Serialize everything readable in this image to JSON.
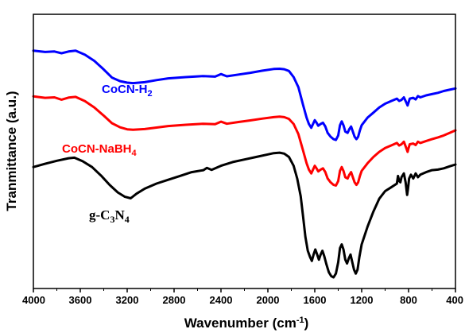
{
  "chart_data": {
    "type": "line",
    "xlabel_main": "Wavenumber (cm",
    "xlabel_sup": "-1",
    "xlabel_end": ")",
    "ylabel": "Tranmittance (a.u.)",
    "xlim": [
      4000,
      400
    ],
    "x_reversed": true,
    "ylim": [
      0,
      100
    ],
    "y_ticks_visible": false,
    "grid": false,
    "xticks": [
      4000,
      3600,
      3200,
      2800,
      2400,
      2000,
      1600,
      1200,
      800,
      400
    ],
    "xtick_labels": [
      "4000",
      "3600",
      "3200",
      "2800",
      "2400",
      "2000",
      "1600",
      "1200",
      "800",
      "400"
    ],
    "series": [
      {
        "name": "CoCN-H2",
        "label_main": "CoCN-H",
        "label_sub": "2",
        "color": "#0000ff",
        "points": [
          [
            4000,
            89.4
          ],
          [
            3900,
            88.9
          ],
          [
            3820,
            89.1
          ],
          [
            3760,
            88.4
          ],
          [
            3700,
            89.1
          ],
          [
            3640,
            89.4
          ],
          [
            3560,
            87.8
          ],
          [
            3480,
            85.4
          ],
          [
            3400,
            82.0
          ],
          [
            3330,
            78.8
          ],
          [
            3260,
            77.4
          ],
          [
            3200,
            76.8
          ],
          [
            3150,
            76.6
          ],
          [
            3050,
            77.0
          ],
          [
            2950,
            77.8
          ],
          [
            2850,
            78.5
          ],
          [
            2700,
            79.0
          ],
          [
            2550,
            79.4
          ],
          [
            2450,
            79.2
          ],
          [
            2400,
            80.2
          ],
          [
            2350,
            79.3
          ],
          [
            2250,
            80.0
          ],
          [
            2150,
            80.7
          ],
          [
            2050,
            81.5
          ],
          [
            1950,
            82.2
          ],
          [
            1900,
            82.3
          ],
          [
            1860,
            82.1
          ],
          [
            1820,
            81.4
          ],
          [
            1780,
            79.0
          ],
          [
            1740,
            75.0
          ],
          [
            1700,
            68.0
          ],
          [
            1670,
            63.0
          ],
          [
            1650,
            60.5
          ],
          [
            1630,
            59.0
          ],
          [
            1615,
            60.5
          ],
          [
            1600,
            62.0
          ],
          [
            1585,
            61.0
          ],
          [
            1570,
            59.8
          ],
          [
            1550,
            60.5
          ],
          [
            1530,
            61.0
          ],
          [
            1510,
            59.5
          ],
          [
            1490,
            57.0
          ],
          [
            1465,
            55.5
          ],
          [
            1440,
            54.5
          ],
          [
            1420,
            54.2
          ],
          [
            1400,
            56.0
          ],
          [
            1385,
            60.0
          ],
          [
            1370,
            61.5
          ],
          [
            1355,
            60.0
          ],
          [
            1340,
            57.5
          ],
          [
            1320,
            57.0
          ],
          [
            1305,
            58.5
          ],
          [
            1290,
            59.5
          ],
          [
            1275,
            57.5
          ],
          [
            1260,
            55.5
          ],
          [
            1245,
            54.5
          ],
          [
            1230,
            55.5
          ],
          [
            1215,
            58.0
          ],
          [
            1200,
            60.0
          ],
          [
            1150,
            63.0
          ],
          [
            1100,
            65.0
          ],
          [
            1050,
            67.0
          ],
          [
            1000,
            68.5
          ],
          [
            950,
            69.5
          ],
          [
            900,
            70.5
          ],
          [
            880,
            69.6
          ],
          [
            860,
            70.0
          ],
          [
            840,
            71.0
          ],
          [
            820,
            69.0
          ],
          [
            808,
            67.8
          ],
          [
            800,
            69.0
          ],
          [
            790,
            70.5
          ],
          [
            760,
            70.8
          ],
          [
            740,
            70.2
          ],
          [
            720,
            71.5
          ],
          [
            700,
            71.0
          ],
          [
            650,
            71.8
          ],
          [
            600,
            72.3
          ],
          [
            550,
            72.8
          ],
          [
            500,
            73.5
          ],
          [
            450,
            74.0
          ],
          [
            400,
            74.5
          ]
        ]
      },
      {
        "name": "CoCN-NaBH4",
        "label_main": "CoCN-NaBH",
        "label_sub": "4",
        "color": "#ff0000",
        "points": [
          [
            4000,
            71.4
          ],
          [
            3900,
            70.8
          ],
          [
            3820,
            71.0
          ],
          [
            3760,
            70.1
          ],
          [
            3700,
            70.9
          ],
          [
            3640,
            71.2
          ],
          [
            3560,
            69.5
          ],
          [
            3480,
            67.0
          ],
          [
            3400,
            63.8
          ],
          [
            3330,
            60.8
          ],
          [
            3260,
            59.2
          ],
          [
            3200,
            58.4
          ],
          [
            3150,
            58.2
          ],
          [
            3050,
            58.5
          ],
          [
            2950,
            59.1
          ],
          [
            2850,
            59.7
          ],
          [
            2700,
            60.2
          ],
          [
            2550,
            60.6
          ],
          [
            2450,
            60.4
          ],
          [
            2400,
            61.4
          ],
          [
            2350,
            60.6
          ],
          [
            2250,
            61.3
          ],
          [
            2150,
            61.9
          ],
          [
            2050,
            62.6
          ],
          [
            1950,
            63.2
          ],
          [
            1900,
            63.4
          ],
          [
            1860,
            63.2
          ],
          [
            1820,
            62.5
          ],
          [
            1780,
            60.5
          ],
          [
            1740,
            56.5
          ],
          [
            1700,
            50.0
          ],
          [
            1670,
            45.0
          ],
          [
            1650,
            42.5
          ],
          [
            1630,
            41.0
          ],
          [
            1615,
            42.5
          ],
          [
            1600,
            44.0
          ],
          [
            1585,
            43.0
          ],
          [
            1570,
            41.8
          ],
          [
            1550,
            42.5
          ],
          [
            1530,
            43.0
          ],
          [
            1510,
            41.5
          ],
          [
            1490,
            39.0
          ],
          [
            1465,
            37.5
          ],
          [
            1440,
            36.5
          ],
          [
            1420,
            36.2
          ],
          [
            1400,
            38.0
          ],
          [
            1385,
            42.0
          ],
          [
            1370,
            43.5
          ],
          [
            1355,
            42.0
          ],
          [
            1340,
            39.5
          ],
          [
            1320,
            39.0
          ],
          [
            1305,
            40.5
          ],
          [
            1290,
            41.5
          ],
          [
            1275,
            39.5
          ],
          [
            1260,
            37.5
          ],
          [
            1245,
            36.5
          ],
          [
            1230,
            37.5
          ],
          [
            1215,
            40.0
          ],
          [
            1200,
            42.0
          ],
          [
            1150,
            45.0
          ],
          [
            1100,
            47.5
          ],
          [
            1050,
            49.5
          ],
          [
            1000,
            51.0
          ],
          [
            950,
            52.0
          ],
          [
            900,
            53.0
          ],
          [
            880,
            52.0
          ],
          [
            860,
            52.5
          ],
          [
            840,
            53.5
          ],
          [
            820,
            51.0
          ],
          [
            808,
            49.5
          ],
          [
            800,
            51.0
          ],
          [
            790,
            52.5
          ],
          [
            760,
            52.8
          ],
          [
            740,
            52.2
          ],
          [
            720,
            53.5
          ],
          [
            700,
            53.0
          ],
          [
            650,
            53.8
          ],
          [
            600,
            54.5
          ],
          [
            550,
            55.2
          ],
          [
            500,
            56.0
          ],
          [
            450,
            57.0
          ],
          [
            400,
            58.0
          ]
        ]
      },
      {
        "name": "g-C3N4",
        "label_main": "g-C",
        "label_sub1": "3",
        "label_mid": "N",
        "label_sub2": "4",
        "color": "#000000",
        "points": [
          [
            4000,
            43.5
          ],
          [
            3900,
            44.8
          ],
          [
            3800,
            46.0
          ],
          [
            3700,
            47.0
          ],
          [
            3650,
            47.2
          ],
          [
            3580,
            45.8
          ],
          [
            3500,
            43.5
          ],
          [
            3420,
            40.0
          ],
          [
            3350,
            36.5
          ],
          [
            3280,
            33.5
          ],
          [
            3220,
            31.8
          ],
          [
            3170,
            31.2
          ],
          [
            3120,
            33.0
          ],
          [
            3050,
            35.0
          ],
          [
            2950,
            37.0
          ],
          [
            2850,
            38.5
          ],
          [
            2750,
            40.0
          ],
          [
            2650,
            41.5
          ],
          [
            2550,
            42.3
          ],
          [
            2520,
            43.2
          ],
          [
            2480,
            42.4
          ],
          [
            2400,
            44.0
          ],
          [
            2300,
            45.5
          ],
          [
            2200,
            46.5
          ],
          [
            2100,
            47.5
          ],
          [
            2000,
            48.5
          ],
          [
            1950,
            49.0
          ],
          [
            1900,
            49.2
          ],
          [
            1860,
            48.8
          ],
          [
            1820,
            47.5
          ],
          [
            1780,
            44.0
          ],
          [
            1750,
            39.0
          ],
          [
            1720,
            32.0
          ],
          [
            1700,
            24.0
          ],
          [
            1680,
            16.0
          ],
          [
            1660,
            10.5
          ],
          [
            1640,
            8.0
          ],
          [
            1625,
            6.5
          ],
          [
            1610,
            9.0
          ],
          [
            1595,
            11.0
          ],
          [
            1580,
            9.0
          ],
          [
            1565,
            7.0
          ],
          [
            1550,
            9.0
          ],
          [
            1535,
            10.5
          ],
          [
            1520,
            8.5
          ],
          [
            1500,
            5.0
          ],
          [
            1480,
            2.0
          ],
          [
            1460,
            0.5
          ],
          [
            1440,
            0.0
          ],
          [
            1420,
            1.5
          ],
          [
            1400,
            6.0
          ],
          [
            1385,
            11.5
          ],
          [
            1370,
            13.0
          ],
          [
            1355,
            11.0
          ],
          [
            1340,
            7.0
          ],
          [
            1325,
            5.5
          ],
          [
            1310,
            7.5
          ],
          [
            1295,
            9.0
          ],
          [
            1280,
            6.0
          ],
          [
            1265,
            3.0
          ],
          [
            1250,
            1.5
          ],
          [
            1235,
            3.0
          ],
          [
            1220,
            8.0
          ],
          [
            1200,
            13.0
          ],
          [
            1150,
            20.0
          ],
          [
            1100,
            26.0
          ],
          [
            1050,
            31.0
          ],
          [
            1000,
            34.0
          ],
          [
            950,
            35.5
          ],
          [
            900,
            37.0
          ],
          [
            890,
            40.0
          ],
          [
            880,
            38.0
          ],
          [
            870,
            37.5
          ],
          [
            860,
            39.5
          ],
          [
            840,
            41.0
          ],
          [
            825,
            37.5
          ],
          [
            812,
            32.5
          ],
          [
            805,
            35.0
          ],
          [
            795,
            39.0
          ],
          [
            780,
            40.5
          ],
          [
            760,
            39.0
          ],
          [
            740,
            41.0
          ],
          [
            720,
            39.5
          ],
          [
            700,
            40.5
          ],
          [
            650,
            41.5
          ],
          [
            600,
            42.3
          ],
          [
            550,
            42.5
          ],
          [
            500,
            43.0
          ],
          [
            450,
            43.8
          ],
          [
            400,
            44.5
          ]
        ]
      }
    ]
  }
}
